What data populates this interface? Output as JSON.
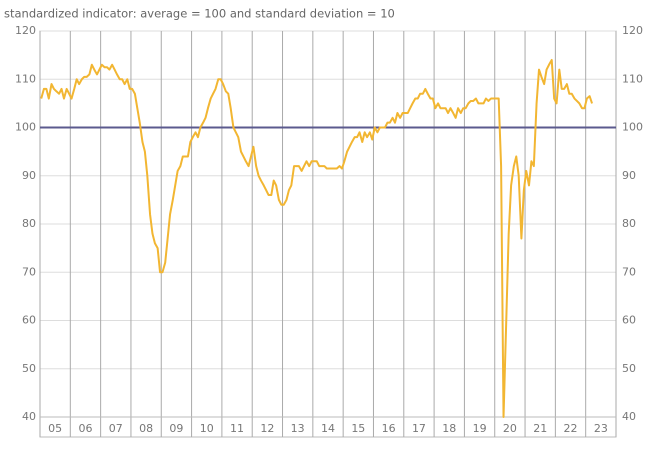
{
  "chart_data": {
    "type": "line",
    "title": "standardized indicator: average = 100 and standard deviation = 10",
    "color": "#f2b632",
    "reference_line": {
      "value": 100,
      "color": "#5b5a8e"
    },
    "grid": true,
    "xlim": [
      2005,
      2024
    ],
    "xticks": [
      {
        "value": 2005.5,
        "label": "05"
      },
      {
        "value": 2006.5,
        "label": "06"
      },
      {
        "value": 2007.5,
        "label": "07"
      },
      {
        "value": 2008.5,
        "label": "08"
      },
      {
        "value": 2009.5,
        "label": "09"
      },
      {
        "value": 2010.5,
        "label": "10"
      },
      {
        "value": 2011.5,
        "label": "11"
      },
      {
        "value": 2012.5,
        "label": "12"
      },
      {
        "value": 2013.5,
        "label": "13"
      },
      {
        "value": 2014.5,
        "label": "14"
      },
      {
        "value": 2015.5,
        "label": "15"
      },
      {
        "value": 2016.5,
        "label": "16"
      },
      {
        "value": 2017.5,
        "label": "17"
      },
      {
        "value": 2018.5,
        "label": "18"
      },
      {
        "value": 2019.5,
        "label": "19"
      },
      {
        "value": 2020.5,
        "label": "20"
      },
      {
        "value": 2021.5,
        "label": "21"
      },
      {
        "value": 2022.5,
        "label": "22"
      },
      {
        "value": 2023.5,
        "label": "23"
      }
    ],
    "ylim": [
      40,
      120
    ],
    "yticks": [
      40,
      50,
      60,
      70,
      80,
      90,
      100,
      110,
      120
    ],
    "y2lim": [
      40,
      120
    ],
    "y2ticks": [
      40,
      50,
      60,
      70,
      80,
      90,
      100,
      110,
      120
    ],
    "x": [
      2005.04,
      2005.13,
      2005.21,
      2005.29,
      2005.38,
      2005.46,
      2005.54,
      2005.63,
      2005.71,
      2005.79,
      2005.88,
      2005.96,
      2006.04,
      2006.13,
      2006.21,
      2006.29,
      2006.38,
      2006.46,
      2006.54,
      2006.63,
      2006.71,
      2006.79,
      2006.88,
      2006.96,
      2007.04,
      2007.13,
      2007.21,
      2007.29,
      2007.38,
      2007.46,
      2007.54,
      2007.63,
      2007.71,
      2007.79,
      2007.88,
      2007.96,
      2008.04,
      2008.13,
      2008.21,
      2008.29,
      2008.38,
      2008.46,
      2008.54,
      2008.63,
      2008.71,
      2008.79,
      2008.88,
      2008.96,
      2009.04,
      2009.13,
      2009.21,
      2009.29,
      2009.38,
      2009.46,
      2009.54,
      2009.63,
      2009.71,
      2009.79,
      2009.88,
      2009.96,
      2010.04,
      2010.13,
      2010.21,
      2010.29,
      2010.38,
      2010.46,
      2010.54,
      2010.63,
      2010.71,
      2010.79,
      2010.88,
      2010.96,
      2011.04,
      2011.13,
      2011.21,
      2011.29,
      2011.38,
      2011.46,
      2011.54,
      2011.63,
      2011.71,
      2011.79,
      2011.88,
      2011.96,
      2012.04,
      2012.13,
      2012.21,
      2012.29,
      2012.38,
      2012.46,
      2012.54,
      2012.63,
      2012.71,
      2012.79,
      2012.88,
      2012.96,
      2013.04,
      2013.13,
      2013.21,
      2013.29,
      2013.38,
      2013.46,
      2013.54,
      2013.63,
      2013.71,
      2013.79,
      2013.88,
      2013.96,
      2014.04,
      2014.13,
      2014.21,
      2014.29,
      2014.38,
      2014.46,
      2014.54,
      2014.63,
      2014.71,
      2014.79,
      2014.88,
      2014.96,
      2015.04,
      2015.13,
      2015.21,
      2015.29,
      2015.38,
      2015.46,
      2015.54,
      2015.63,
      2015.71,
      2015.79,
      2015.88,
      2015.96,
      2016.04,
      2016.13,
      2016.21,
      2016.29,
      2016.38,
      2016.46,
      2016.54,
      2016.63,
      2016.71,
      2016.79,
      2016.88,
      2016.96,
      2017.04,
      2017.13,
      2017.21,
      2017.29,
      2017.38,
      2017.46,
      2017.54,
      2017.63,
      2017.71,
      2017.79,
      2017.88,
      2017.96,
      2018.04,
      2018.13,
      2018.21,
      2018.29,
      2018.38,
      2018.46,
      2018.54,
      2018.63,
      2018.71,
      2018.79,
      2018.88,
      2018.96,
      2019.04,
      2019.13,
      2019.21,
      2019.29,
      2019.38,
      2019.46,
      2019.54,
      2019.63,
      2019.71,
      2019.79,
      2019.88,
      2019.96,
      2020.04,
      2020.13,
      2020.21,
      2020.29,
      2020.38,
      2020.46,
      2020.54,
      2020.63,
      2020.71,
      2020.79,
      2020.88,
      2020.96,
      2021.04,
      2021.13,
      2021.21,
      2021.29,
      2021.38,
      2021.46,
      2021.54,
      2021.63,
      2021.71,
      2021.79,
      2021.88,
      2021.96,
      2022.04,
      2022.13,
      2022.21,
      2022.29,
      2022.38,
      2022.46,
      2022.54,
      2022.63,
      2022.71,
      2022.79,
      2022.88,
      2022.96,
      2023.04,
      2023.13,
      2023.21
    ],
    "values": [
      106,
      108,
      108,
      106,
      109,
      108,
      107.5,
      107,
      108,
      106,
      108,
      107,
      106,
      108,
      110,
      109,
      110,
      110.5,
      110.5,
      111,
      113,
      112,
      111,
      112,
      113,
      112.5,
      112.5,
      112,
      113,
      112,
      111,
      110,
      110,
      109,
      110,
      108,
      108,
      107,
      104,
      101,
      97,
      95,
      90,
      82,
      78,
      76,
      75,
      70,
      70,
      72,
      77,
      82,
      85,
      88,
      91,
      92,
      94,
      94,
      94,
      97,
      98,
      99,
      98,
      100,
      101,
      102,
      104,
      106,
      107,
      108,
      110,
      110,
      109,
      107.5,
      107,
      104,
      100,
      99,
      98,
      95,
      94,
      93,
      92,
      94,
      96,
      92,
      90,
      89,
      88,
      87,
      86,
      86,
      89,
      88,
      85,
      84,
      84,
      85,
      87,
      88,
      92,
      92,
      92,
      91,
      92,
      93,
      92,
      93,
      93,
      93,
      92,
      92,
      92,
      91.5,
      91.5,
      91.5,
      91.5,
      91.5,
      92,
      91.5,
      93,
      95,
      96,
      97,
      98,
      98,
      99,
      97,
      99,
      98,
      99,
      97.5,
      100,
      99,
      100,
      100,
      100,
      101,
      101,
      102,
      101,
      103,
      102,
      103,
      103,
      103,
      104,
      105,
      106,
      106,
      107,
      107,
      108,
      107,
      106,
      106,
      104,
      105,
      104,
      104,
      104,
      103,
      104,
      103,
      102,
      104,
      103,
      104,
      104,
      105,
      105.5,
      105.5,
      106,
      105,
      105,
      105,
      106,
      105.5,
      106,
      106,
      106,
      106,
      92,
      40,
      60,
      78,
      88,
      92,
      94,
      90,
      77,
      87,
      91,
      88,
      93,
      92,
      105,
      112,
      110.5,
      109,
      112,
      113,
      114,
      106,
      105,
      112,
      108,
      108,
      109,
      107,
      107,
      106,
      105.5,
      105,
      104,
      104,
      106,
      106.5,
      105
    ]
  }
}
